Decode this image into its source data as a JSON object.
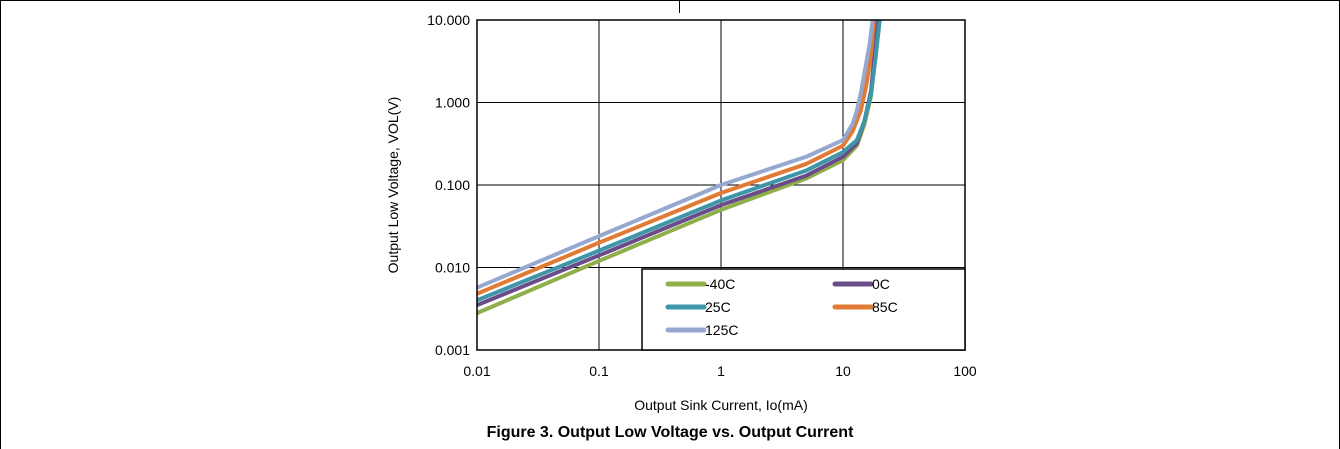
{
  "figure": {
    "caption": "Figure 3. Output Low Voltage vs. Output Current"
  },
  "chart_data": {
    "type": "line",
    "title": "",
    "xlabel": "Output Sink Current, Io(mA)",
    "ylabel": "Output Low Voltage, VOL(V)",
    "x_scale": "log",
    "y_scale": "log",
    "xlim": [
      0.01,
      100
    ],
    "ylim": [
      0.001,
      10
    ],
    "x_ticks": [
      0.01,
      0.1,
      1,
      10,
      100
    ],
    "x_tick_labels": [
      "0.01",
      "0.1",
      "1",
      "10",
      "100"
    ],
    "y_ticks": [
      0.001,
      0.01,
      0.1,
      1,
      10
    ],
    "y_tick_labels": [
      "0.001",
      "0.010",
      "0.100",
      "1.000",
      "10.000"
    ],
    "grid": true,
    "legend_position": "bottom-right",
    "series": [
      {
        "name": "-40C",
        "color": "#8faf4a",
        "x": [
          0.01,
          0.1,
          1,
          5,
          10,
          13,
          15,
          17,
          18,
          19
        ],
        "y": [
          0.0028,
          0.012,
          0.05,
          0.12,
          0.2,
          0.3,
          0.55,
          1.2,
          3,
          10
        ]
      },
      {
        "name": "0C",
        "color": "#6b4c8a",
        "x": [
          0.01,
          0.1,
          1,
          5,
          10,
          13,
          15,
          17,
          18,
          19
        ],
        "y": [
          0.0035,
          0.014,
          0.057,
          0.13,
          0.22,
          0.32,
          0.6,
          1.4,
          3.5,
          10
        ]
      },
      {
        "name": "25C",
        "color": "#3e96a8",
        "x": [
          0.01,
          0.1,
          1,
          5,
          10,
          13,
          15,
          17,
          18.5,
          20
        ],
        "y": [
          0.004,
          0.016,
          0.065,
          0.15,
          0.25,
          0.35,
          0.6,
          1.3,
          3.5,
          10
        ]
      },
      {
        "name": "85C",
        "color": "#e07a35",
        "x": [
          0.01,
          0.1,
          1,
          5,
          10,
          12,
          14,
          15.5,
          17,
          18
        ],
        "y": [
          0.0048,
          0.02,
          0.08,
          0.18,
          0.3,
          0.45,
          0.8,
          1.6,
          4,
          10
        ]
      },
      {
        "name": "125C",
        "color": "#96a8cf",
        "x": [
          0.01,
          0.1,
          1,
          5,
          10,
          12,
          13,
          14,
          15,
          16.5,
          17.5
        ],
        "y": [
          0.0057,
          0.024,
          0.1,
          0.22,
          0.35,
          0.55,
          0.8,
          1.3,
          2.3,
          5,
          10
        ]
      }
    ]
  }
}
